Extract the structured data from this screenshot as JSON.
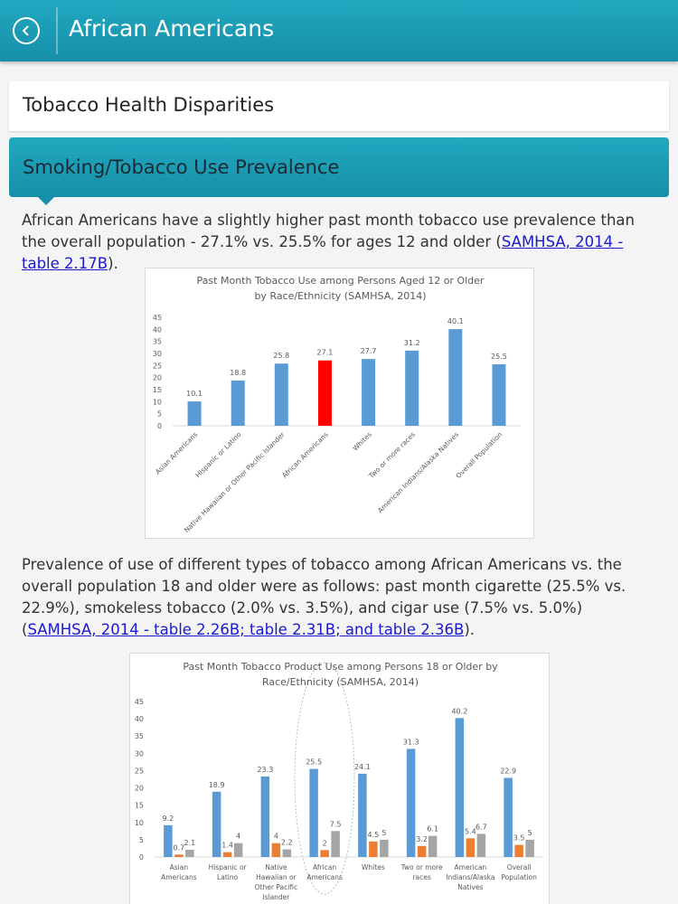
{
  "header": {
    "title": "African Americans"
  },
  "section": {
    "title": "Tobacco Health Disparities"
  },
  "subsection": {
    "title": "Smoking/Tobacco Use Prevalence"
  },
  "paragraphs": [
    {
      "text": "African Americans have a slightly higher past month tobacco use prevalence than the overall population - 27.1% vs. 25.5% for ages 12 and older (",
      "link": "SAMHSA, 2014 - table 2.17B",
      "tail": ")."
    },
    {
      "text": "Prevalence of use of different types of tobacco among African Americans vs. the overall population 18 and older were as follows: past month cigarette (25.5% vs. 22.9%), smokeless tobacco (2.0% vs. 3.5%), and cigar use (7.5% vs. 5.0%) (",
      "link": "SAMHSA, 2014 - table 2.26B; table 2.31B; and table 2.36B",
      "tail": ")."
    }
  ],
  "chart_data": [
    {
      "type": "bar",
      "title": [
        "Past Month Tobacco Use among Persons Aged 12 or Older",
        "by Race/Ethnicity (SAMHSA, 2014)"
      ],
      "categories": [
        "Asian Americans",
        "Hispanic or Latino",
        "Native Hawaiian or Other Pacific Islander",
        "African Americans",
        "Whites",
        "Two or more races",
        "American Indians/Alaska Natives",
        "Overall Population"
      ],
      "values": [
        10.1,
        18.8,
        25.8,
        27.1,
        27.7,
        31.2,
        40.1,
        25.5
      ],
      "colors": [
        "#5b9bd5",
        "#5b9bd5",
        "#5b9bd5",
        "#ff0000",
        "#5b9bd5",
        "#5b9bd5",
        "#5b9bd5",
        "#5b9bd5"
      ],
      "ylim": [
        0,
        45
      ],
      "yticks": [
        0,
        5,
        10,
        15,
        20,
        25,
        30,
        35,
        40,
        45
      ],
      "grid": false
    },
    {
      "type": "grouped_bar",
      "title": [
        "Past Month Tobacco Product Use among Persons 18 or Older by",
        "Race/Ethnicity (SAMHSA, 2014)"
      ],
      "categories": [
        [
          "Asian",
          "Americans"
        ],
        [
          "Hispanic or",
          "Latino"
        ],
        [
          "Native",
          "Hawaiian or",
          "Other Pacific",
          "Islander"
        ],
        [
          "African",
          "Americans"
        ],
        [
          "Whites"
        ],
        [
          "Two or more",
          "races"
        ],
        [
          "American",
          "Indians/Alaska",
          "Natives"
        ],
        [
          "Overall",
          "Population"
        ]
      ],
      "series": [
        {
          "color": "#5b9bd5",
          "values": [
            9.2,
            18.9,
            23.3,
            25.5,
            24.1,
            31.3,
            40.2,
            22.9
          ]
        },
        {
          "color": "#ed7d31",
          "values": [
            0.7,
            1.4,
            4,
            2,
            4.5,
            3.2,
            5.4,
            3.5
          ]
        },
        {
          "color": "#a5a5a5",
          "values": [
            2.1,
            4,
            2.2,
            7.5,
            5,
            6.1,
            6.7,
            5
          ]
        }
      ],
      "ylim": [
        0,
        45
      ],
      "yticks": [
        0,
        5,
        10,
        15,
        20,
        25,
        30,
        35,
        40,
        45
      ],
      "grid": false
    }
  ]
}
